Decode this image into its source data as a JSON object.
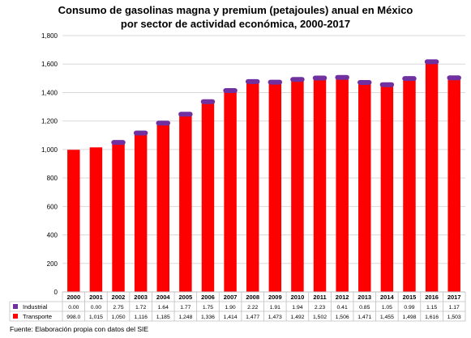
{
  "title_line1": "Consumo de gasolinas magna y premium (petajoules) anual en México",
  "title_line2": "por sector de actividad económica, 2000-2017",
  "source": "Fuente: Elaboración propia con datos del SIE",
  "colors": {
    "industrial": "#7030a0",
    "transporte": "#ff0000",
    "grid": "#d9d9d9"
  },
  "chart_data": {
    "type": "bar",
    "stacked": true,
    "categories": [
      "2000",
      "2001",
      "2002",
      "2003",
      "2004",
      "2005",
      "2006",
      "2007",
      "2008",
      "2009",
      "2010",
      "2011",
      "2012",
      "2013",
      "2014",
      "2015",
      "2016",
      "2017"
    ],
    "ylim": [
      0,
      1800
    ],
    "yticks": [
      0,
      200,
      400,
      600,
      800,
      1000,
      1200,
      1400,
      1600,
      1800
    ],
    "ytick_labels": [
      "0",
      "200",
      "400",
      "600",
      "800",
      "1,000",
      "1,200",
      "1,400",
      "1,600",
      "1,800"
    ],
    "grid": true,
    "legend": "data-table-below",
    "series": [
      {
        "name": "Industrial",
        "values": [
          0.0,
          0.0,
          2.75,
          1.72,
          1.64,
          1.77,
          1.75,
          1.9,
          2.22,
          1.91,
          1.94,
          2.23,
          0.41,
          0.85,
          1.05,
          0.99,
          1.15,
          1.17
        ],
        "labels": [
          "0.00",
          "0.00",
          "2.75",
          "1.72",
          "1.64",
          "1.77",
          "1.75",
          "1.90",
          "2.22",
          "1.91",
          "1.94",
          "2.23",
          "0.41",
          "0.85",
          "1.05",
          "0.99",
          "1.15",
          "1.17"
        ]
      },
      {
        "name": "Transporte",
        "values": [
          998.0,
          1015,
          1050,
          1116,
          1185,
          1248,
          1336,
          1414,
          1477,
          1473,
          1492,
          1502,
          1506,
          1471,
          1455,
          1498,
          1616,
          1503
        ],
        "labels": [
          "998.0",
          "1,015",
          "1,050",
          "1,116",
          "1,185",
          "1,248",
          "1,336",
          "1,414",
          "1,477",
          "1,473",
          "1,492",
          "1,502",
          "1,506",
          "1,471",
          "1,455",
          "1,498",
          "1,616",
          "1,503"
        ]
      }
    ]
  }
}
